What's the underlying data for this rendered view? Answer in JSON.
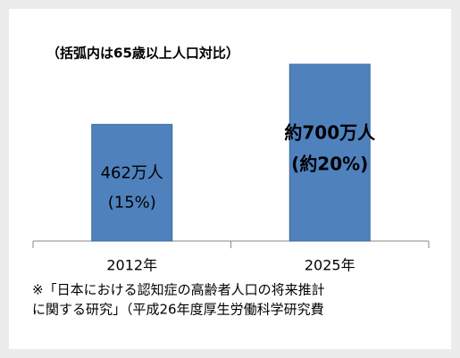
{
  "chart_data": {
    "type": "bar",
    "subtitle": "（括弧内は65歳以上人口対比）",
    "categories": [
      "2012年",
      "2025年"
    ],
    "values": [
      462,
      700
    ],
    "value_labels": [
      "462万人",
      "約700万人"
    ],
    "share_labels": [
      "(15%)",
      "(約20%)"
    ],
    "color": "#4f81bd",
    "footnote": [
      "※「日本における認知症の高齢者人口の将来推計",
      "に関する研究」（平成26年度厚生労働科学研究費"
    ]
  }
}
